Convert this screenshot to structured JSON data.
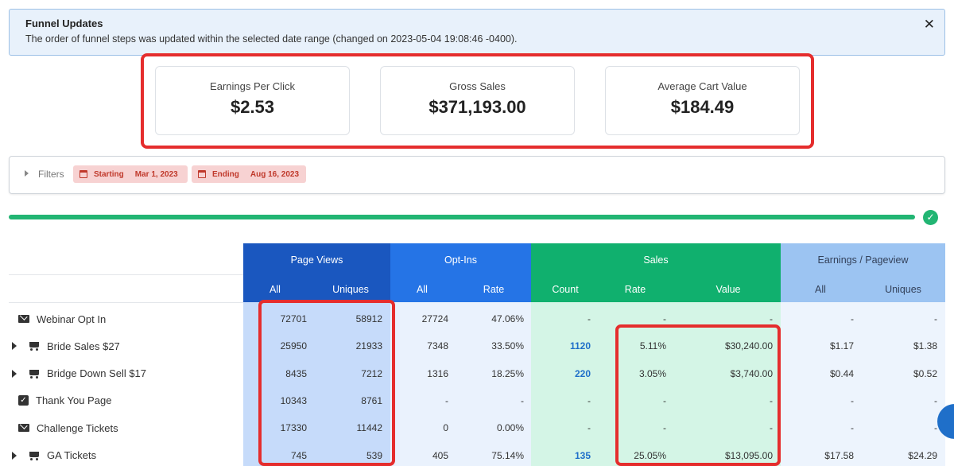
{
  "alert": {
    "title": "Funnel Updates",
    "message": "The order of funnel steps was updated within the selected date range (changed on 2023-05-04 19:08:46 -0400).",
    "close_glyph": "✕"
  },
  "stats": [
    {
      "label": "Earnings Per Click",
      "value": "$2.53"
    },
    {
      "label": "Gross Sales",
      "value": "$371,193.00"
    },
    {
      "label": "Average Cart Value",
      "value": "$184.49"
    }
  ],
  "filters": {
    "label": "Filters",
    "starting_label": "Starting",
    "starting_value": "Mar 1, 2023",
    "ending_label": "Ending",
    "ending_value": "Aug 16, 2023"
  },
  "progress": {
    "value": 1.0,
    "complete_glyph": "✓"
  },
  "colors": {
    "page_views": "#1a57bf",
    "opt_ins": "#2574e6",
    "sales": "#10b06e",
    "earnings": "#9cc4f2",
    "page_views_cell": "#c6dbfa",
    "opt_ins_cell": "#eaf2fd",
    "sales_cell": "#d4f5e6",
    "earnings_cell": "#edf4fd",
    "highlight": "#e52d2d"
  },
  "table": {
    "groups": {
      "page_views": "Page Views",
      "opt_ins": "Opt-Ins",
      "sales": "Sales",
      "earnings": "Earnings / Pageview"
    },
    "subheaders": {
      "pv_all": "All",
      "pv_uniques": "Uniques",
      "oi_all": "All",
      "oi_rate": "Rate",
      "s_count": "Count",
      "s_rate": "Rate",
      "s_value": "Value",
      "e_all": "All",
      "e_uniques": "Uniques"
    },
    "rows": [
      {
        "name": "Webinar Opt In",
        "icon": "envelope-icon",
        "pv_all": "72701",
        "pv_uniques": "58912",
        "oi_all": "27724",
        "oi_rate": "47.06%",
        "s_count": "-",
        "s_rate": "-",
        "s_value": "-",
        "e_all": "-",
        "e_uniques": "-"
      },
      {
        "name": "Bride Sales $27",
        "icon": "cart-icon",
        "pv_all": "25950",
        "pv_uniques": "21933",
        "oi_all": "7348",
        "oi_rate": "33.50%",
        "s_count": "1120",
        "s_rate": "5.11%",
        "s_value": "$30,240.00",
        "e_all": "$1.17",
        "e_uniques": "$1.38"
      },
      {
        "name": "Bridge Down Sell $17",
        "icon": "cart-icon",
        "pv_all": "8435",
        "pv_uniques": "7212",
        "oi_all": "1316",
        "oi_rate": "18.25%",
        "s_count": "220",
        "s_rate": "3.05%",
        "s_value": "$3,740.00",
        "e_all": "$0.44",
        "e_uniques": "$0.52"
      },
      {
        "name": "Thank You Page",
        "icon": "checkbox-icon",
        "pv_all": "10343",
        "pv_uniques": "8761",
        "oi_all": "-",
        "oi_rate": "-",
        "s_count": "-",
        "s_rate": "-",
        "s_value": "-",
        "e_all": "-",
        "e_uniques": "-"
      },
      {
        "name": "Challenge Tickets",
        "icon": "envelope-icon",
        "pv_all": "17330",
        "pv_uniques": "11442",
        "oi_all": "0",
        "oi_rate": "0.00%",
        "s_count": "-",
        "s_rate": "-",
        "s_value": "-",
        "e_all": "-",
        "e_uniques": "-"
      },
      {
        "name": "GA Tickets",
        "icon": "cart-icon",
        "pv_all": "745",
        "pv_uniques": "539",
        "oi_all": "405",
        "oi_rate": "75.14%",
        "s_count": "135",
        "s_rate": "25.05%",
        "s_value": "$13,095.00",
        "e_all": "$17.58",
        "e_uniques": "$24.29"
      }
    ]
  }
}
